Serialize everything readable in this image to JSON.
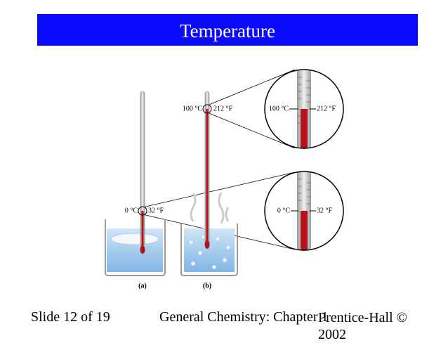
{
  "header": {
    "title": "Temperature"
  },
  "figure": {
    "thermometer_b_labels": {
      "celsius": "100 °C",
      "fahrenheit": "212 °F"
    },
    "thermometer_a_labels": {
      "celsius": "0 °C",
      "fahrenheit": "32 °F"
    },
    "zoom_top_labels": {
      "celsius": "100 °C",
      "fahrenheit": "212 °F"
    },
    "zoom_bottom_labels": {
      "celsius": "0 °C",
      "fahrenheit": "32 °F"
    },
    "panel_labels": [
      "(a)",
      "(b)"
    ]
  },
  "footer": {
    "slide": "Slide 12 of 19",
    "course": "General Chemistry: Chapter 1",
    "publisher": "Prentice-Hall © 2002"
  }
}
